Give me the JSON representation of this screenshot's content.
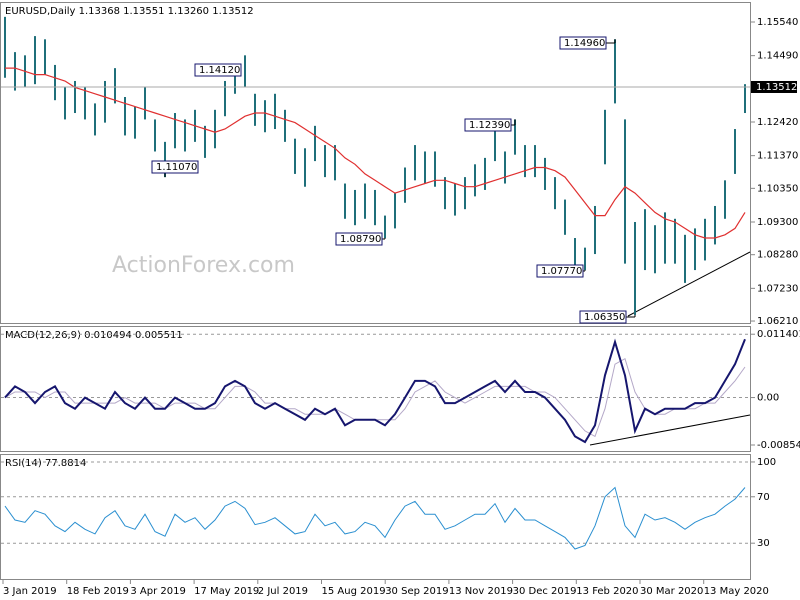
{
  "chart_data": [
    {
      "type": "ohlc",
      "title": "EURUSD,Daily  1.13368 1.13551 1.13260 1.13512",
      "color": "#1f6f7a",
      "high": [
        1.157,
        1.146,
        1.145,
        1.151,
        1.15,
        1.142,
        1.135,
        1.137,
        1.135,
        1.13,
        1.137,
        1.141,
        1.132,
        1.129,
        1.135,
        1.125,
        1.118,
        1.127,
        1.125,
        1.128,
        1.123,
        1.128,
        1.137,
        1.142,
        1.145,
        1.133,
        1.131,
        1.133,
        1.128,
        1.119,
        1.116,
        1.123,
        1.117,
        1.117,
        1.105,
        1.103,
        1.105,
        1.103,
        1.095,
        1.102,
        1.11,
        1.117,
        1.115,
        1.115,
        1.107,
        1.105,
        1.107,
        1.111,
        1.113,
        1.124,
        1.115,
        1.125,
        1.117,
        1.117,
        1.113,
        1.107,
        1.1,
        1.088,
        1.085,
        1.098,
        1.128,
        1.15,
        1.125,
        1.093,
        1.097,
        1.092,
        1.096,
        1.094,
        1.089,
        1.091,
        1.094,
        1.098,
        1.106,
        1.122,
        1.136
      ],
      "low": [
        1.138,
        1.134,
        1.135,
        1.136,
        1.139,
        1.131,
        1.125,
        1.127,
        1.125,
        1.12,
        1.124,
        1.13,
        1.12,
        1.119,
        1.125,
        1.115,
        1.107,
        1.116,
        1.115,
        1.118,
        1.113,
        1.116,
        1.126,
        1.133,
        1.135,
        1.123,
        1.121,
        1.122,
        1.118,
        1.108,
        1.104,
        1.112,
        1.107,
        1.106,
        1.094,
        1.092,
        1.094,
        1.092,
        1.088,
        1.091,
        1.099,
        1.106,
        1.105,
        1.104,
        1.097,
        1.095,
        1.097,
        1.101,
        1.103,
        1.112,
        1.105,
        1.114,
        1.107,
        1.107,
        1.103,
        1.097,
        1.089,
        1.078,
        1.078,
        1.083,
        1.111,
        1.13,
        1.08,
        1.064,
        1.078,
        1.077,
        1.08,
        1.08,
        1.074,
        1.078,
        1.081,
        1.086,
        1.094,
        1.108,
        1.127
      ],
      "ma": {
        "color": "#e03030",
        "values": [
          1.141,
          1.141,
          1.14,
          1.139,
          1.139,
          1.138,
          1.137,
          1.135,
          1.134,
          1.133,
          1.132,
          1.131,
          1.13,
          1.129,
          1.128,
          1.127,
          1.126,
          1.125,
          1.124,
          1.123,
          1.122,
          1.121,
          1.122,
          1.124,
          1.126,
          1.127,
          1.127,
          1.126,
          1.125,
          1.124,
          1.122,
          1.12,
          1.118,
          1.116,
          1.113,
          1.111,
          1.108,
          1.106,
          1.104,
          1.102,
          1.103,
          1.104,
          1.105,
          1.106,
          1.106,
          1.105,
          1.104,
          1.104,
          1.105,
          1.106,
          1.107,
          1.108,
          1.109,
          1.11,
          1.11,
          1.109,
          1.107,
          1.103,
          1.099,
          1.095,
          1.095,
          1.1,
          1.104,
          1.102,
          1.099,
          1.096,
          1.094,
          1.093,
          1.091,
          1.089,
          1.088,
          1.088,
          1.089,
          1.091,
          1.096
        ]
      },
      "ylim": [
        1.0618,
        1.1607
      ],
      "yticks": [
        {
          "value": 1.1554,
          "label": "1.15540"
        },
        {
          "value": 1.1449,
          "label": "1.14490"
        },
        {
          "value": 1.1242,
          "label": "1.12420"
        },
        {
          "value": 1.1137,
          "label": "1.11370"
        },
        {
          "value": 1.1035,
          "label": "1.10350"
        },
        {
          "value": 1.093,
          "label": "1.09300"
        },
        {
          "value": 1.0828,
          "label": "1.08280"
        },
        {
          "value": 1.0723,
          "label": "1.07230"
        },
        {
          "value": 1.0621,
          "label": "1.06210"
        }
      ],
      "current_price": {
        "value": 1.13512,
        "label": "1.13512"
      },
      "annotations": [
        "1.14120",
        "1.11070",
        "1.08790",
        "1.12390",
        "1.14960",
        "1.07770",
        "1.06350"
      ],
      "watermark": "ActionForex.com"
    },
    {
      "type": "macd",
      "title": "MACD(12,26,9) 0.010494 0.005511",
      "series": [
        {
          "color": "#16166e",
          "values": [
            0.0,
            0.002,
            0.001,
            -0.001,
            0.001,
            0.002,
            -0.001,
            -0.002,
            0.0,
            -0.001,
            -0.002,
            0.001,
            -0.001,
            -0.002,
            0.0,
            -0.002,
            -0.002,
            0.0,
            -0.001,
            -0.002,
            -0.002,
            -0.001,
            0.002,
            0.003,
            0.002,
            -0.001,
            -0.002,
            -0.001,
            -0.002,
            -0.003,
            -0.004,
            -0.002,
            -0.003,
            -0.002,
            -0.005,
            -0.004,
            -0.004,
            -0.004,
            -0.005,
            -0.003,
            0.0,
            0.003,
            0.003,
            0.002,
            -0.001,
            -0.001,
            0.0,
            0.001,
            0.002,
            0.003,
            0.001,
            0.003,
            0.001,
            0.001,
            0.0,
            -0.002,
            -0.004,
            -0.007,
            -0.008,
            -0.005,
            0.004,
            0.01,
            0.004,
            -0.006,
            -0.002,
            -0.003,
            -0.002,
            -0.002,
            -0.002,
            -0.001,
            -0.001,
            0.0,
            0.003,
            0.006,
            0.0105
          ]
        },
        {
          "color": "#b4a8c8",
          "values": [
            0.0,
            0.001,
            0.001,
            0.001,
            0.0,
            0.001,
            0.001,
            -0.001,
            -0.001,
            -0.001,
            -0.001,
            -0.001,
            0.0,
            -0.001,
            -0.001,
            -0.001,
            -0.002,
            -0.001,
            -0.001,
            -0.001,
            -0.002,
            -0.002,
            0.0,
            0.002,
            0.002,
            0.001,
            -0.001,
            -0.001,
            -0.002,
            -0.002,
            -0.003,
            -0.003,
            -0.003,
            -0.002,
            -0.003,
            -0.004,
            -0.004,
            -0.004,
            -0.004,
            -0.004,
            -0.002,
            0.001,
            0.002,
            0.003,
            0.001,
            0.0,
            -0.001,
            0.0,
            0.001,
            0.002,
            0.002,
            0.002,
            0.002,
            0.001,
            0.001,
            0.0,
            -0.002,
            -0.004,
            -0.006,
            -0.007,
            -0.002,
            0.006,
            0.007,
            0.001,
            -0.002,
            -0.003,
            -0.003,
            -0.002,
            -0.002,
            -0.002,
            -0.001,
            -0.001,
            0.001,
            0.003,
            0.0055
          ]
        }
      ],
      "ylim": [
        -0.00944,
        0.0127
      ],
      "yticks": [
        0.011401,
        {
          "value": 0,
          "label": "0.00"
        },
        -0.008541
      ]
    },
    {
      "type": "line",
      "title": "RSI(14) 77.8814",
      "color": "#2a8fd0",
      "values": [
        62,
        50,
        48,
        58,
        55,
        45,
        40,
        48,
        42,
        38,
        52,
        58,
        45,
        42,
        55,
        40,
        36,
        55,
        48,
        52,
        42,
        50,
        62,
        66,
        60,
        46,
        48,
        52,
        45,
        38,
        40,
        55,
        45,
        48,
        38,
        40,
        48,
        45,
        35,
        50,
        62,
        66,
        55,
        55,
        42,
        45,
        50,
        55,
        55,
        64,
        48,
        60,
        50,
        50,
        45,
        40,
        35,
        25,
        28,
        45,
        70,
        78,
        45,
        35,
        55,
        50,
        52,
        48,
        42,
        48,
        52,
        55,
        62,
        68,
        78
      ],
      "ylim": [
        0,
        106
      ],
      "yticks": [
        100,
        70,
        30
      ],
      "grid": true,
      "xtick_labels": [
        "3 Jan 2019",
        "18 Feb 2019",
        "3 Apr 2019",
        "17 May 2019",
        "2 Jul 2019",
        "15 Aug 2019",
        "30 Sep 2019",
        "13 Nov 2019",
        "30 Dec 2019",
        "13 Feb 2020",
        "30 Mar 2020",
        "13 May 2020"
      ]
    }
  ]
}
